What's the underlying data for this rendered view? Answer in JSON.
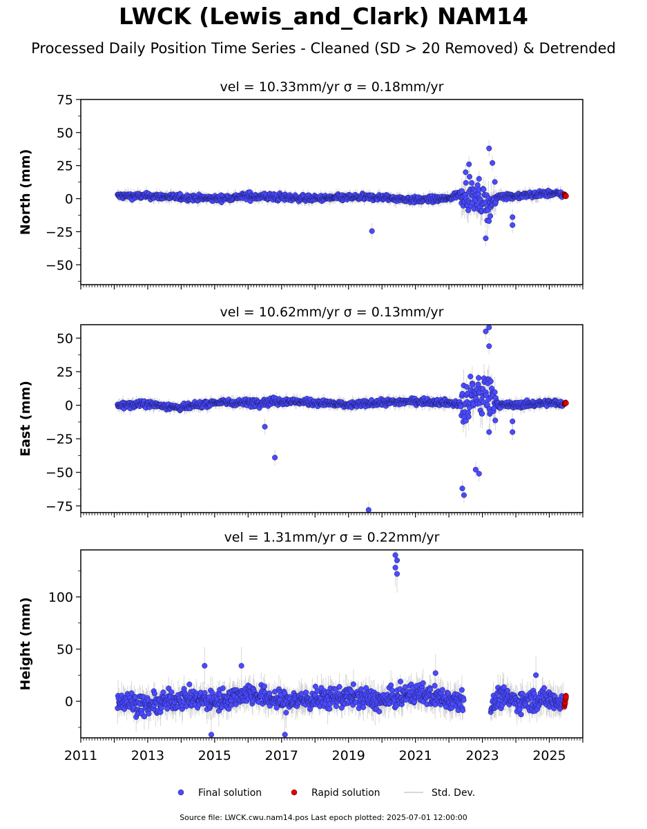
{
  "title": "LWCK (Lewis_and_Clark) NAM14",
  "subtitle": "Processed Daily Position Time Series - Cleaned (SD > 20 Removed) & Detrended",
  "source_note": "Source file: LWCK.cwu.nam14.pos  Last epoch plotted: 2025-07-01 12:00:00",
  "legend": [
    {
      "label": "Final solution",
      "color": "#4a4aff"
    },
    {
      "label": "Rapid solution",
      "color": "#e00000"
    },
    {
      "label": "Std. Dev.",
      "color": "#cccccc"
    }
  ],
  "chart_data": [
    {
      "type": "scatter",
      "title": "vel = 10.33mm/yr   σ = 0.18mm/yr",
      "ylabel": "North (mm)",
      "xlim": [
        2011,
        2026
      ],
      "ylim": [
        -65,
        75
      ],
      "yticks": [
        "75",
        "50",
        "25",
        "0",
        "−25",
        "−50"
      ],
      "ytick_values": [
        75,
        50,
        25,
        0,
        -25,
        -50
      ],
      "outliers": [
        [
          2019.7,
          -24.5
        ],
        [
          2022.5,
          20
        ],
        [
          2022.6,
          26
        ],
        [
          2023.2,
          38
        ],
        [
          2023.3,
          27
        ],
        [
          2023.1,
          -30
        ],
        [
          2023.9,
          -14
        ],
        [
          2023.9,
          -20
        ],
        [
          2022.9,
          15
        ]
      ],
      "series": [
        {
          "name": "Final solution",
          "x": [
            2012.1,
            2013.0,
            2014.0,
            2015.0,
            2016.0,
            2017.0,
            2018.0,
            2019.0,
            2020.0,
            2021.0,
            2022.0,
            2022.4,
            2022.8,
            2023.2,
            2023.5,
            2024.0,
            2025.0,
            2025.45
          ],
          "y": [
            2,
            2,
            1,
            0,
            2,
            1,
            0,
            1,
            1,
            -1,
            0,
            5,
            0,
            -5,
            2,
            2,
            4,
            3
          ]
        },
        {
          "name": "Rapid solution",
          "x": [
            2025.45,
            2025.5
          ],
          "y": [
            3,
            2
          ]
        }
      ]
    },
    {
      "type": "scatter",
      "title": "vel = 10.62mm/yr   σ = 0.13mm/yr",
      "ylabel": "East (mm)",
      "xlim": [
        2011,
        2026
      ],
      "ylim": [
        -80,
        60
      ],
      "yticks": [
        "50",
        "25",
        "0",
        "−25",
        "−50",
        "−75"
      ],
      "ytick_values": [
        50,
        25,
        0,
        -25,
        -50,
        -75
      ],
      "outliers": [
        [
          2016.5,
          -16
        ],
        [
          2016.8,
          -39
        ],
        [
          2019.6,
          -78
        ],
        [
          2022.4,
          -62
        ],
        [
          2022.45,
          -67
        ],
        [
          2022.9,
          -51
        ],
        [
          2023.1,
          55
        ],
        [
          2023.2,
          58
        ],
        [
          2023.2,
          44
        ],
        [
          2023.2,
          -20
        ],
        [
          2023.9,
          -12
        ],
        [
          2023.9,
          -20
        ],
        [
          2022.7,
          15
        ],
        [
          2022.8,
          -48
        ]
      ],
      "series": [
        {
          "name": "Final solution",
          "x": [
            2012.1,
            2013.0,
            2014.0,
            2015.0,
            2016.0,
            2017.0,
            2018.0,
            2019.0,
            2020.0,
            2021.0,
            2022.0,
            2022.4,
            2022.8,
            2023.2,
            2023.5,
            2024.0,
            2025.0,
            2025.45
          ],
          "y": [
            0,
            1,
            -2,
            2,
            2,
            3,
            2,
            0,
            2,
            3,
            2,
            0,
            5,
            10,
            0,
            0,
            2,
            1
          ]
        },
        {
          "name": "Rapid solution",
          "x": [
            2025.45,
            2025.5
          ],
          "y": [
            1,
            2
          ]
        }
      ]
    },
    {
      "type": "scatter",
      "title": "vel = 1.31mm/yr   σ = 0.22mm/yr",
      "ylabel": "Height (mm)",
      "xlim": [
        2011,
        2026
      ],
      "ylim": [
        -35,
        145
      ],
      "yticks": [
        "100",
        "50",
        "0"
      ],
      "ytick_values": [
        100,
        50,
        0
      ],
      "xticks": [
        "2011",
        "2013",
        "2015",
        "2017",
        "2019",
        "2021",
        "2023",
        "2025"
      ],
      "xtick_values": [
        2011,
        2013,
        2015,
        2017,
        2019,
        2021,
        2023,
        2025
      ],
      "outliers": [
        [
          2020.4,
          140
        ],
        [
          2020.45,
          135
        ],
        [
          2020.4,
          128
        ],
        [
          2020.45,
          122
        ],
        [
          2014.7,
          34
        ],
        [
          2015.8,
          34
        ],
        [
          2014.9,
          -32
        ],
        [
          2017.1,
          -32
        ],
        [
          2024.6,
          25
        ],
        [
          2021.6,
          27
        ]
      ],
      "gaps": [
        [
          2022.45,
          2023.25
        ]
      ],
      "series": [
        {
          "name": "Final solution",
          "x": [
            2012.1,
            2013.0,
            2014.0,
            2015.0,
            2016.0,
            2017.0,
            2018.0,
            2019.0,
            2020.0,
            2021.0,
            2022.0,
            2022.4,
            2023.3,
            2023.5,
            2024.0,
            2025.0,
            2025.45
          ],
          "y": [
            2,
            -5,
            3,
            0,
            8,
            0,
            2,
            5,
            0,
            8,
            2,
            3,
            -5,
            5,
            0,
            2,
            0
          ]
        },
        {
          "name": "Rapid solution",
          "x": [
            2025.45,
            2025.5
          ],
          "y": [
            -5,
            5
          ]
        }
      ]
    }
  ]
}
